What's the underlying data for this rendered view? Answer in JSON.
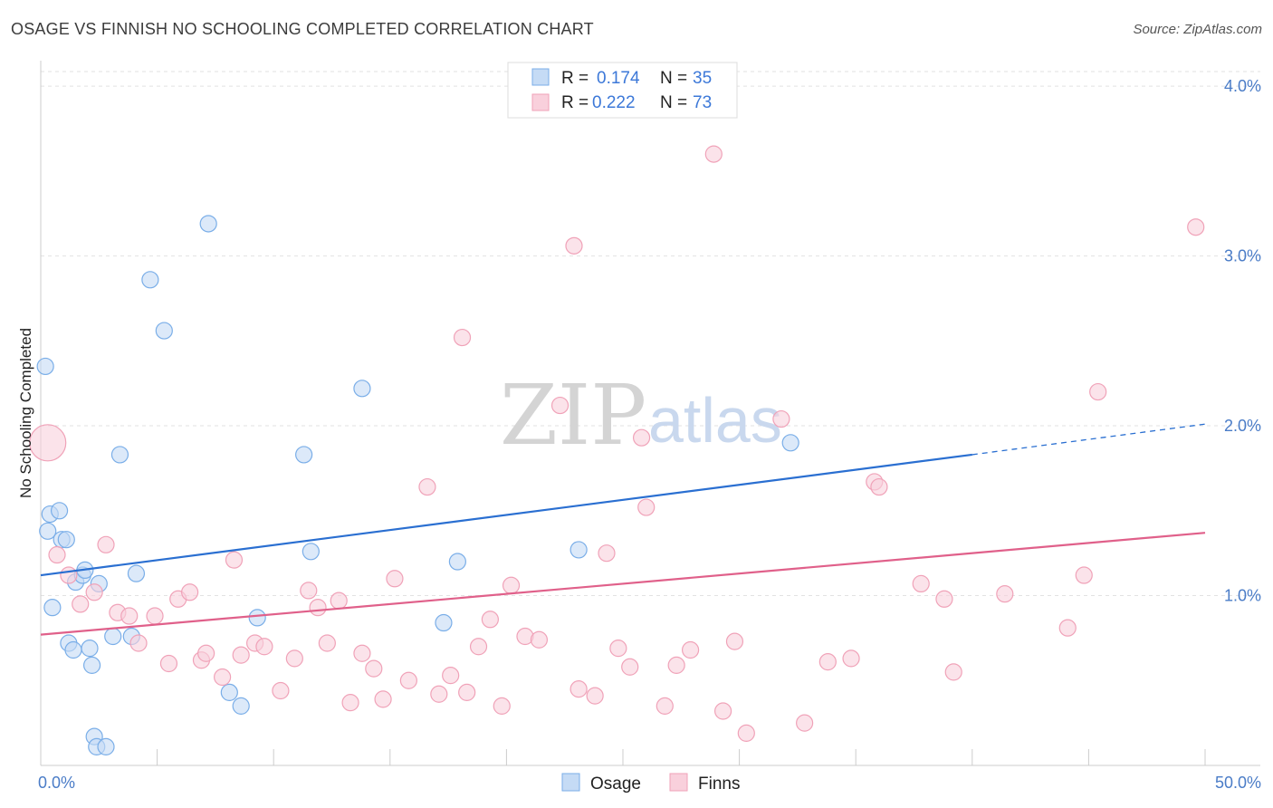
{
  "title": "OSAGE VS FINNISH NO SCHOOLING COMPLETED CORRELATION CHART",
  "source": "Source: ZipAtlas.com",
  "watermark": {
    "zip": "ZIP",
    "atlas": "atlas"
  },
  "chart_data": {
    "type": "scatter",
    "ylabel": "No Schooling Completed",
    "xlim": [
      0,
      50
    ],
    "ylim": [
      0,
      4.15
    ],
    "x_tick_labels": [
      {
        "value": 0,
        "label": "0.0%"
      },
      {
        "value": 50,
        "label": "50.0%"
      }
    ],
    "y_tick_labels": [
      {
        "value": 1,
        "label": "1.0%"
      },
      {
        "value": 2,
        "label": "2.0%"
      },
      {
        "value": 3,
        "label": "3.0%"
      },
      {
        "value": 4,
        "label": "4.0%"
      }
    ],
    "legend": {
      "r_label": "R =",
      "n_label": "N =",
      "entries": [
        {
          "series": "Osage",
          "r": "0.174",
          "n": "35"
        },
        {
          "series": "Finns",
          "r": "0.222",
          "n": "73"
        }
      ]
    },
    "series": [
      {
        "name": "Osage",
        "color": "#7aaee8",
        "fill": "#c5dbf5",
        "line_color": "#2a6fd1",
        "trend": {
          "x0": 0,
          "y0": 1.12,
          "x1": 40,
          "y1": 1.83,
          "dash_to_x": 50,
          "dash_to_y": 2.01
        },
        "points": [
          [
            0.2,
            2.35
          ],
          [
            0.3,
            1.38
          ],
          [
            0.4,
            1.48
          ],
          [
            0.8,
            1.5
          ],
          [
            0.9,
            1.33
          ],
          [
            1.1,
            1.33
          ],
          [
            0.5,
            0.93
          ],
          [
            1.2,
            0.72
          ],
          [
            1.4,
            0.68
          ],
          [
            1.5,
            1.08
          ],
          [
            1.8,
            1.12
          ],
          [
            1.9,
            1.15
          ],
          [
            2.1,
            0.69
          ],
          [
            2.2,
            0.59
          ],
          [
            2.3,
            0.17
          ],
          [
            2.4,
            0.11
          ],
          [
            2.8,
            0.11
          ],
          [
            2.5,
            1.07
          ],
          [
            3.1,
            0.76
          ],
          [
            3.4,
            1.83
          ],
          [
            3.9,
            0.76
          ],
          [
            4.1,
            1.13
          ],
          [
            4.7,
            2.86
          ],
          [
            5.3,
            2.56
          ],
          [
            7.2,
            3.19
          ],
          [
            8.1,
            0.43
          ],
          [
            8.6,
            0.35
          ],
          [
            9.3,
            0.87
          ],
          [
            11.3,
            1.83
          ],
          [
            11.6,
            1.26
          ],
          [
            13.8,
            2.22
          ],
          [
            17.3,
            0.84
          ],
          [
            17.9,
            1.2
          ],
          [
            23.1,
            1.27
          ],
          [
            32.2,
            1.9
          ]
        ]
      },
      {
        "name": "Finns",
        "color": "#f0a2b8",
        "fill": "#f9d0dc",
        "line_color": "#e0608a",
        "trend": {
          "x0": 0,
          "y0": 0.77,
          "x1": 50,
          "y1": 1.37
        },
        "points": [
          [
            0.3,
            1.9
          ],
          [
            0.7,
            1.24
          ],
          [
            1.2,
            1.12
          ],
          [
            1.7,
            0.95
          ],
          [
            2.3,
            1.02
          ],
          [
            2.8,
            1.3
          ],
          [
            3.3,
            0.9
          ],
          [
            3.8,
            0.88
          ],
          [
            4.2,
            0.72
          ],
          [
            4.9,
            0.88
          ],
          [
            5.5,
            0.6
          ],
          [
            5.9,
            0.98
          ],
          [
            6.4,
            1.02
          ],
          [
            6.9,
            0.62
          ],
          [
            7.1,
            0.66
          ],
          [
            7.8,
            0.52
          ],
          [
            8.3,
            1.21
          ],
          [
            8.6,
            0.65
          ],
          [
            9.2,
            0.72
          ],
          [
            9.6,
            0.7
          ],
          [
            10.3,
            0.44
          ],
          [
            10.9,
            0.63
          ],
          [
            11.5,
            1.03
          ],
          [
            11.9,
            0.93
          ],
          [
            12.3,
            0.72
          ],
          [
            12.8,
            0.97
          ],
          [
            13.3,
            0.37
          ],
          [
            13.8,
            0.66
          ],
          [
            14.3,
            0.57
          ],
          [
            14.7,
            0.39
          ],
          [
            15.2,
            1.1
          ],
          [
            15.8,
            0.5
          ],
          [
            16.6,
            1.64
          ],
          [
            17.1,
            0.42
          ],
          [
            17.6,
            0.53
          ],
          [
            18.1,
            2.52
          ],
          [
            18.3,
            0.43
          ],
          [
            18.8,
            0.7
          ],
          [
            19.3,
            0.86
          ],
          [
            19.8,
            0.35
          ],
          [
            20.2,
            1.06
          ],
          [
            20.8,
            0.76
          ],
          [
            21.4,
            0.74
          ],
          [
            22.3,
            2.12
          ],
          [
            22.9,
            3.06
          ],
          [
            23.1,
            0.45
          ],
          [
            23.8,
            0.41
          ],
          [
            24.3,
            1.25
          ],
          [
            24.8,
            0.69
          ],
          [
            25.3,
            0.58
          ],
          [
            25.8,
            1.93
          ],
          [
            26.0,
            1.52
          ],
          [
            26.8,
            0.35
          ],
          [
            27.3,
            0.59
          ],
          [
            27.9,
            0.68
          ],
          [
            28.9,
            3.6
          ],
          [
            29.3,
            0.32
          ],
          [
            29.8,
            0.73
          ],
          [
            30.3,
            0.19
          ],
          [
            31.8,
            2.04
          ],
          [
            32.8,
            0.25
          ],
          [
            33.8,
            0.61
          ],
          [
            34.8,
            0.63
          ],
          [
            35.8,
            1.67
          ],
          [
            36.0,
            1.64
          ],
          [
            37.8,
            1.07
          ],
          [
            38.8,
            0.98
          ],
          [
            39.2,
            0.55
          ],
          [
            41.4,
            1.01
          ],
          [
            44.1,
            0.81
          ],
          [
            44.8,
            1.12
          ],
          [
            45.4,
            2.2
          ],
          [
            49.6,
            3.17
          ]
        ]
      }
    ]
  }
}
